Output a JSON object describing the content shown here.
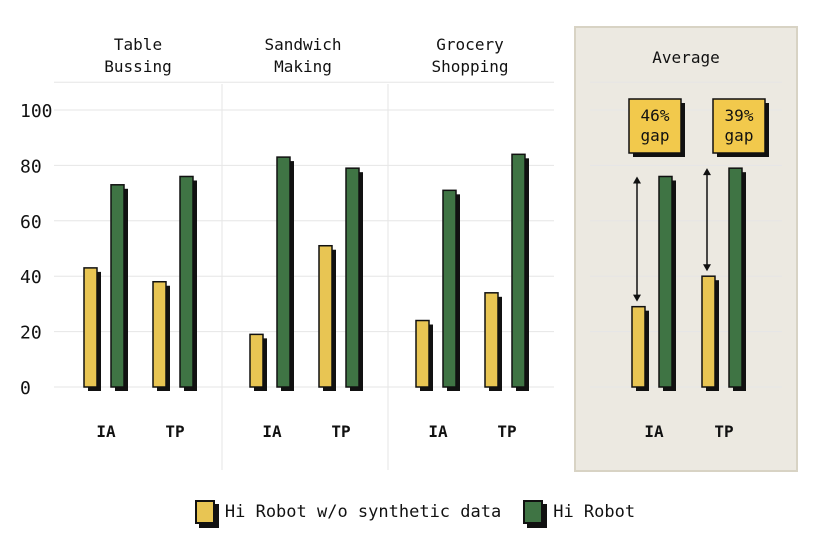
{
  "chart_data": {
    "type": "bar",
    "ylim": [
      0,
      110
    ],
    "yticks": [
      0,
      20,
      40,
      60,
      80,
      100
    ],
    "grid": true,
    "panels": [
      {
        "title": [
          "Table",
          "Bussing"
        ],
        "categories": [
          "IA",
          "TP"
        ],
        "series": [
          {
            "name": "Hi Robot w/o synthetic data",
            "values": [
              43,
              38
            ]
          },
          {
            "name": "Hi Robot",
            "values": [
              73,
              76
            ]
          }
        ]
      },
      {
        "title": [
          "Sandwich",
          "Making"
        ],
        "categories": [
          "IA",
          "TP"
        ],
        "series": [
          {
            "name": "Hi Robot w/o synthetic data",
            "values": [
              19,
              51
            ]
          },
          {
            "name": "Hi Robot",
            "values": [
              83,
              79
            ]
          }
        ]
      },
      {
        "title": [
          "Grocery",
          "Shopping"
        ],
        "categories": [
          "IA",
          "TP"
        ],
        "series": [
          {
            "name": "Hi Robot w/o synthetic data",
            "values": [
              24,
              34
            ]
          },
          {
            "name": "Hi Robot",
            "values": [
              71,
              84
            ]
          }
        ]
      },
      {
        "title": [
          "Average"
        ],
        "categories": [
          "IA",
          "TP"
        ],
        "highlighted": true,
        "series": [
          {
            "name": "Hi Robot w/o synthetic data",
            "values": [
              29,
              40
            ]
          },
          {
            "name": "Hi Robot",
            "values": [
              76,
              79
            ]
          }
        ],
        "annotations": [
          "46%\ngap",
          "39%\ngap"
        ]
      }
    ]
  },
  "legend": [
    {
      "label": "Hi Robot w/o synthetic data",
      "color": "#E8C553"
    },
    {
      "label": "Hi Robot",
      "color": "#3F7444"
    }
  ],
  "colors": {
    "grid": "#E6E6E6",
    "panel_bg": "#ECE9E1",
    "panel_border": "#D8D3C4",
    "ink": "#111111",
    "note_bg": "#F2C94C"
  }
}
